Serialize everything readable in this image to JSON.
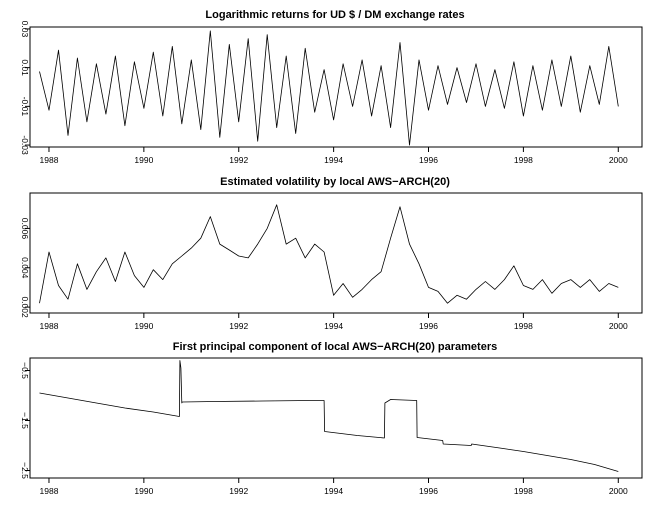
{
  "chart_data": [
    {
      "type": "line",
      "title": "Logarithmic returns for UD $ / DM  exchange rates",
      "xlabel": "",
      "ylabel": "",
      "xlim": [
        1987.6,
        2000.5
      ],
      "ylim": [
        -0.031,
        0.031
      ],
      "x_ticks": [
        1988,
        1990,
        1992,
        1994,
        1996,
        1998,
        2000
      ],
      "x_tick_labels": [
        "1988",
        "1990",
        "1992",
        "1994",
        "1996",
        "1998",
        "2000"
      ],
      "y_ticks": [
        -0.03,
        -0.01,
        0.01,
        0.03
      ],
      "y_tick_labels": [
        "-0.03",
        "-0.01",
        "0.01",
        "0.03"
      ],
      "series": [
        {
          "x": [
            1987.8,
            1988.0,
            1988.2,
            1988.4,
            1988.6,
            1988.8,
            1989.0,
            1989.2,
            1989.4,
            1989.6,
            1989.8,
            1990.0,
            1990.2,
            1990.4,
            1990.6,
            1990.8,
            1991.0,
            1991.2,
            1991.4,
            1991.6,
            1991.8,
            1992.0,
            1992.2,
            1992.4,
            1992.6,
            1992.8,
            1993.0,
            1993.2,
            1993.4,
            1993.6,
            1993.8,
            1994.0,
            1994.2,
            1994.4,
            1994.6,
            1994.8,
            1995.0,
            1995.2,
            1995.4,
            1995.6,
            1995.8,
            1996.0,
            1996.2,
            1996.4,
            1996.6,
            1996.8,
            1997.0,
            1997.2,
            1997.4,
            1997.6,
            1997.8,
            1998.0,
            1998.2,
            1998.4,
            1998.6,
            1998.8,
            1999.0,
            1999.2,
            1999.4,
            1999.6,
            1999.8,
            2000.0
          ],
          "y": [
            0.008,
            -0.012,
            0.019,
            -0.025,
            0.015,
            -0.018,
            0.012,
            -0.014,
            0.016,
            -0.02,
            0.013,
            -0.011,
            0.018,
            -0.015,
            0.021,
            -0.019,
            0.014,
            -0.022,
            0.029,
            -0.026,
            0.022,
            -0.018,
            0.025,
            -0.028,
            0.027,
            -0.021,
            0.016,
            -0.024,
            0.02,
            -0.013,
            0.009,
            -0.017,
            0.012,
            -0.01,
            0.014,
            -0.015,
            0.011,
            -0.021,
            0.023,
            -0.03,
            0.014,
            -0.012,
            0.011,
            -0.009,
            0.01,
            -0.008,
            0.012,
            -0.01,
            0.009,
            -0.011,
            0.013,
            -0.015,
            0.011,
            -0.012,
            0.014,
            -0.01,
            0.016,
            -0.013,
            0.011,
            -0.009,
            0.021,
            -0.01
          ]
        }
      ]
    },
    {
      "type": "line",
      "title": "Estimated volatility by local AWS−ARCH(20)",
      "xlabel": "",
      "ylabel": "",
      "xlim": [
        1987.6,
        2000.5
      ],
      "ylim": [
        0.0017,
        0.0078
      ],
      "x_ticks": [
        1988,
        1990,
        1992,
        1994,
        1996,
        1998,
        2000
      ],
      "x_tick_labels": [
        "1988",
        "1990",
        "1992",
        "1994",
        "1996",
        "1998",
        "2000"
      ],
      "y_ticks": [
        0.002,
        0.004,
        0.006
      ],
      "y_tick_labels": [
        "0.002",
        "0.004",
        "0.006"
      ],
      "series": [
        {
          "x": [
            1987.8,
            1988.0,
            1988.2,
            1988.4,
            1988.6,
            1988.8,
            1989.0,
            1989.2,
            1989.4,
            1989.6,
            1989.8,
            1990.0,
            1990.2,
            1990.4,
            1990.6,
            1990.8,
            1991.0,
            1991.2,
            1991.4,
            1991.6,
            1991.8,
            1992.0,
            1992.2,
            1992.4,
            1992.6,
            1992.8,
            1993.0,
            1993.2,
            1993.4,
            1993.6,
            1993.8,
            1994.0,
            1994.2,
            1994.4,
            1994.6,
            1994.8,
            1995.0,
            1995.2,
            1995.4,
            1995.6,
            1995.8,
            1996.0,
            1996.2,
            1996.4,
            1996.6,
            1996.8,
            1997.0,
            1997.2,
            1997.4,
            1997.6,
            1997.8,
            1998.0,
            1998.2,
            1998.4,
            1998.6,
            1998.8,
            1999.0,
            1999.2,
            1999.4,
            1999.6,
            1999.8,
            2000.0
          ],
          "y": [
            0.0022,
            0.0048,
            0.0031,
            0.0024,
            0.0042,
            0.0029,
            0.0038,
            0.0045,
            0.0033,
            0.0048,
            0.0036,
            0.003,
            0.0039,
            0.0034,
            0.0042,
            0.0046,
            0.005,
            0.0055,
            0.0066,
            0.0052,
            0.0049,
            0.0046,
            0.0045,
            0.0052,
            0.006,
            0.0072,
            0.0052,
            0.0055,
            0.0045,
            0.0052,
            0.0048,
            0.0026,
            0.0032,
            0.0025,
            0.0029,
            0.0034,
            0.0038,
            0.0055,
            0.0071,
            0.0052,
            0.0042,
            0.003,
            0.0028,
            0.0022,
            0.0026,
            0.0024,
            0.0029,
            0.0033,
            0.0029,
            0.0034,
            0.0041,
            0.0031,
            0.0029,
            0.0034,
            0.0027,
            0.0032,
            0.0034,
            0.003,
            0.0034,
            0.0028,
            0.0032,
            0.003
          ]
        }
      ]
    },
    {
      "type": "line",
      "title": "First principal component of local AWS−ARCH(20) parameters",
      "xlabel": "",
      "ylabel": "",
      "xlim": [
        1987.6,
        2000.5
      ],
      "ylim": [
        -2.65,
        -0.25
      ],
      "x_ticks": [
        1988,
        1990,
        1992,
        1994,
        1996,
        1998,
        2000
      ],
      "x_tick_labels": [
        "1988",
        "1990",
        "1992",
        "1994",
        "1996",
        "1998",
        "2000"
      ],
      "y_ticks": [
        -2.5,
        -1.5,
        -0.5
      ],
      "y_tick_labels": [
        "−2.5",
        "−1.5",
        "−0.5"
      ],
      "series": [
        {
          "x": [
            1987.8,
            1988.4,
            1989.0,
            1989.6,
            1990.2,
            1990.75,
            1990.76,
            1990.78,
            1990.8,
            1990.81,
            1991.5,
            1992.5,
            1993.5,
            1993.8,
            1993.81,
            1994.5,
            1995.07,
            1995.08,
            1995.2,
            1995.75,
            1995.76,
            1996.3,
            1996.31,
            1996.9,
            1996.91,
            1997.5,
            1998.0,
            1998.5,
            1999.0,
            1999.5,
            2000.0
          ],
          "y": [
            -0.95,
            -1.05,
            -1.15,
            -1.25,
            -1.33,
            -1.42,
            -0.3,
            -0.45,
            -1.15,
            -1.13,
            -1.12,
            -1.11,
            -1.1,
            -1.1,
            -1.72,
            -1.8,
            -1.85,
            -1.15,
            -1.08,
            -1.1,
            -1.84,
            -1.9,
            -1.97,
            -2.0,
            -1.97,
            -2.05,
            -2.12,
            -2.2,
            -2.28,
            -2.38,
            -2.52
          ]
        }
      ]
    }
  ]
}
